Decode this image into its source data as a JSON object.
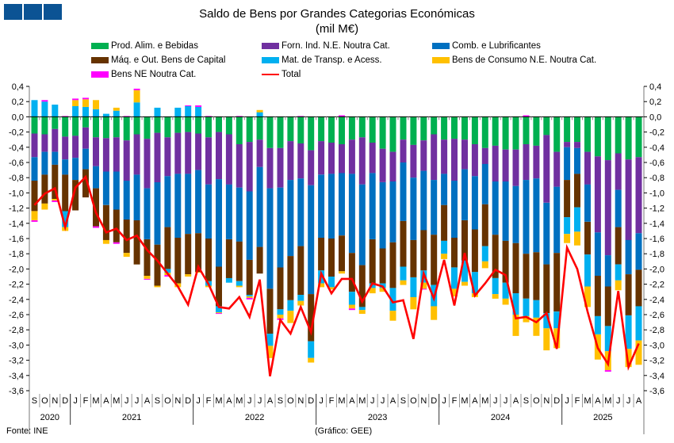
{
  "logo": {
    "blocks": 3,
    "color": "#0b5394"
  },
  "footer": {
    "source": "Fonte: INE",
    "credit": "(Gráfico: GEE)"
  },
  "chart_data": {
    "type": "bar",
    "stacked": true,
    "title": "Saldo de Bens por Grandes Categorias Económicas",
    "subtitle": "(mil M€)",
    "xlabel": "",
    "ylabel": "",
    "ylim": [
      -3.6,
      0.4
    ],
    "ytick_step": 0.2,
    "y_ticks": [
      "0,4",
      "0,2",
      "0,0",
      "-0,2",
      "-0,4",
      "-0,6",
      "-0,8",
      "-1,0",
      "-1,2",
      "-1,4",
      "-1,6",
      "-1,8",
      "-2,0",
      "-2,2",
      "-2,4",
      "-2,6",
      "-2,8",
      "-3,0",
      "-3,2",
      "-3,4",
      "-3,6"
    ],
    "grid": false,
    "legend_position": "top",
    "years": [
      {
        "label": "2020",
        "months": 4
      },
      {
        "label": "2021",
        "months": 12
      },
      {
        "label": "2022",
        "months": 12
      },
      {
        "label": "2023",
        "months": 12
      },
      {
        "label": "2024",
        "months": 12
      },
      {
        "label": "2025",
        "months": 8
      }
    ],
    "categories": [
      "S",
      "O",
      "N",
      "D",
      "J",
      "F",
      "M",
      "A",
      "M",
      "J",
      "J",
      "A",
      "S",
      "O",
      "N",
      "D",
      "J",
      "F",
      "M",
      "A",
      "M",
      "J",
      "J",
      "A",
      "S",
      "O",
      "N",
      "D",
      "J",
      "F",
      "M",
      "A",
      "M",
      "J",
      "J",
      "A",
      "S",
      "O",
      "N",
      "D",
      "J",
      "F",
      "M",
      "A",
      "M",
      "J",
      "J",
      "A",
      "S",
      "O",
      "N",
      "D",
      "J",
      "F",
      "M",
      "A",
      "M",
      "J",
      "J",
      "A"
    ],
    "series": [
      {
        "name": "Prod. Alim. e Bebidas",
        "color": "#00b050",
        "values": [
          -0.22,
          -0.23,
          -0.16,
          -0.26,
          -0.25,
          -0.14,
          -0.27,
          -0.28,
          -0.27,
          -0.31,
          -0.23,
          -0.29,
          -0.21,
          -0.27,
          -0.21,
          -0.2,
          -0.22,
          -0.27,
          -0.2,
          -0.23,
          -0.36,
          -0.33,
          -0.3,
          -0.41,
          -0.41,
          -0.32,
          -0.35,
          -0.44,
          -0.32,
          -0.34,
          -0.36,
          -0.3,
          -0.27,
          -0.34,
          -0.42,
          -0.46,
          -0.3,
          -0.37,
          -0.31,
          -0.23,
          -0.3,
          -0.29,
          -0.3,
          -0.36,
          -0.41,
          -0.38,
          -0.43,
          -0.43,
          -0.36,
          -0.38,
          -0.24,
          -0.46,
          -0.33,
          -0.33,
          -0.46,
          -0.52,
          -0.57,
          -0.48,
          -0.56,
          -0.53
        ]
      },
      {
        "name": "Forn. Ind. N.E. Noutra Cat.",
        "color": "#7030a0",
        "values": [
          -0.31,
          -0.23,
          -0.3,
          -0.3,
          -0.29,
          -0.28,
          -0.38,
          -0.44,
          -0.45,
          -0.53,
          -0.53,
          -0.65,
          -0.65,
          -0.51,
          -0.54,
          -0.55,
          -0.48,
          -0.62,
          -0.62,
          -0.66,
          -0.57,
          -0.65,
          -0.36,
          -0.53,
          -0.52,
          -0.51,
          -0.46,
          -0.46,
          -0.44,
          -0.41,
          -0.38,
          -0.45,
          -0.62,
          -0.4,
          -0.44,
          -0.39,
          -0.3,
          -0.43,
          -0.4,
          -0.6,
          -0.45,
          -0.55,
          -0.39,
          -0.42,
          -0.21,
          -0.47,
          -0.42,
          -0.48,
          -0.47,
          -0.43,
          -0.89,
          -0.46,
          -0.07,
          -0.08,
          -0.43,
          -1.0,
          -1.25,
          -0.48,
          -1.06,
          -1.0
        ]
      },
      {
        "name": "Comb. e Lubrificantes",
        "color": "#0070c0",
        "values": [
          -0.31,
          -0.3,
          -0.17,
          -0.2,
          -0.29,
          -0.27,
          -0.29,
          -0.44,
          -0.5,
          -0.51,
          -0.6,
          -0.67,
          -0.82,
          -0.67,
          -0.84,
          -0.79,
          -0.83,
          -0.71,
          -1.15,
          -0.72,
          -0.71,
          -0.9,
          -1.05,
          -1.32,
          -1.05,
          -1.0,
          -0.89,
          -1.43,
          -0.83,
          -0.85,
          -0.82,
          -1.04,
          -1.06,
          -0.87,
          -0.87,
          -0.8,
          -0.77,
          -0.82,
          -0.78,
          -0.72,
          -0.41,
          -0.75,
          -0.67,
          -0.7,
          -0.53,
          -0.7,
          -0.78,
          -0.75,
          -0.97,
          -0.97,
          -0.81,
          -0.87,
          -0.43,
          -0.34,
          -0.49,
          -0.57,
          -0.41,
          -0.49,
          -0.45,
          -0.48
        ]
      },
      {
        "name": "Máq. e Out. Bens de Capital",
        "color": "#663300",
        "values": [
          -0.4,
          -0.38,
          -0.45,
          -0.48,
          -0.4,
          -0.37,
          -0.5,
          -0.46,
          -0.43,
          -0.44,
          -0.58,
          -0.48,
          -0.54,
          -0.55,
          -0.6,
          -0.53,
          -0.51,
          -0.56,
          -0.52,
          -0.51,
          -0.52,
          -0.46,
          -0.35,
          -0.59,
          -0.55,
          -0.58,
          -0.64,
          -0.62,
          -0.43,
          -0.5,
          -0.47,
          -0.51,
          -0.55,
          -0.58,
          -0.46,
          -0.6,
          -0.6,
          -0.49,
          -0.53,
          -0.66,
          -0.47,
          -0.39,
          -0.53,
          -0.56,
          -0.55,
          -0.57,
          -0.55,
          -0.66,
          -0.59,
          -0.63,
          -0.64,
          -0.77,
          -0.49,
          -0.44,
          -0.43,
          -0.53,
          -0.52,
          -0.49,
          -0.54,
          -0.48
        ]
      },
      {
        "name": "Mat. de Transp. e Acess.",
        "color": "#00b0f0",
        "values": [
          0.22,
          0.2,
          0.16,
          -0.21,
          0.14,
          0.13,
          0.1,
          0.04,
          0.08,
          0.0,
          0.19,
          0.0,
          0.12,
          -0.05,
          0.12,
          0.14,
          0.13,
          -0.06,
          -0.08,
          -0.06,
          -0.06,
          -0.02,
          0.06,
          -0.16,
          -0.07,
          -0.14,
          -0.08,
          -0.22,
          -0.17,
          -0.14,
          0.0,
          -0.17,
          -0.04,
          -0.06,
          -0.06,
          -0.3,
          -0.18,
          -0.26,
          -0.16,
          -0.28,
          -0.17,
          -0.28,
          -0.28,
          -0.28,
          -0.2,
          -0.21,
          -0.21,
          -0.28,
          -0.23,
          -0.23,
          -0.2,
          -0.22,
          -0.22,
          -0.32,
          -0.42,
          -0.24,
          -0.33,
          -0.21,
          -0.44,
          -0.45
        ]
      },
      {
        "name": "Bens de Consumo N.E. Noutra Cat.",
        "color": "#ffc000",
        "values": [
          -0.12,
          -0.08,
          -0.02,
          -0.05,
          0.08,
          0.1,
          0.12,
          -0.05,
          0.04,
          -0.05,
          0.16,
          -0.04,
          -0.02,
          -0.03,
          -0.05,
          -0.03,
          -0.01,
          -0.02,
          -0.01,
          0.0,
          -0.02,
          -0.02,
          0.03,
          -0.16,
          -0.05,
          -0.16,
          -0.06,
          -0.06,
          -0.05,
          -0.03,
          -0.03,
          -0.05,
          -0.05,
          -0.07,
          -0.05,
          -0.13,
          -0.06,
          -0.16,
          -0.08,
          -0.18,
          -0.07,
          -0.1,
          -0.05,
          -0.05,
          -0.09,
          -0.06,
          -0.08,
          -0.28,
          -0.08,
          -0.24,
          -0.29,
          -0.26,
          -0.12,
          -0.18,
          -0.27,
          -0.33,
          -0.25,
          -0.13,
          -0.24,
          -0.32
        ]
      },
      {
        "name": "Bens NE Noutra Cat.",
        "color": "#ff00ff",
        "values": [
          -0.02,
          0.02,
          -0.02,
          0.01,
          0.02,
          0.02,
          -0.02,
          0.0,
          -0.02,
          0.01,
          0.02,
          -0.01,
          0.0,
          -0.02,
          0.0,
          0.01,
          0.02,
          0.01,
          -0.01,
          0.0,
          0.01,
          -0.02,
          0.0,
          0.0,
          -0.02,
          0.0,
          0.01,
          0.0,
          0.0,
          0.0,
          0.02,
          -0.02,
          0.0,
          0.0,
          0.0,
          0.0,
          0.0,
          0.0,
          -0.01,
          0.0,
          0.0,
          0.0,
          0.0,
          0.0,
          0.0,
          0.0,
          0.0,
          0.0,
          0.02,
          0.0,
          0.0,
          0.0,
          0.0,
          0.0,
          0.0,
          0.0,
          -0.02,
          0.0,
          0.0,
          0.0
        ]
      },
      {
        "name": "Total",
        "color": "#ff0000",
        "type": "line",
        "values": [
          -1.16,
          -1.01,
          -0.94,
          -1.45,
          -0.93,
          -0.79,
          -1.26,
          -1.52,
          -1.47,
          -1.62,
          -1.56,
          -1.75,
          -1.89,
          -2.06,
          -2.23,
          -2.47,
          -1.97,
          -2.2,
          -2.5,
          -2.52,
          -2.37,
          -2.63,
          -2.14,
          -3.41,
          -2.67,
          -2.85,
          -2.5,
          -2.83,
          -2.06,
          -2.32,
          -2.13,
          -2.13,
          -2.43,
          -2.19,
          -2.23,
          -2.44,
          -2.41,
          -2.92,
          -2.06,
          -2.39,
          -1.88,
          -2.48,
          -1.79,
          -2.35,
          -2.19,
          -2.01,
          -2.08,
          -2.65,
          -2.63,
          -2.7,
          -2.58,
          -3.05,
          -1.72,
          -2.0,
          -2.56,
          -3.04,
          -3.25,
          -2.29,
          -3.29,
          -2.98
        ]
      }
    ]
  }
}
